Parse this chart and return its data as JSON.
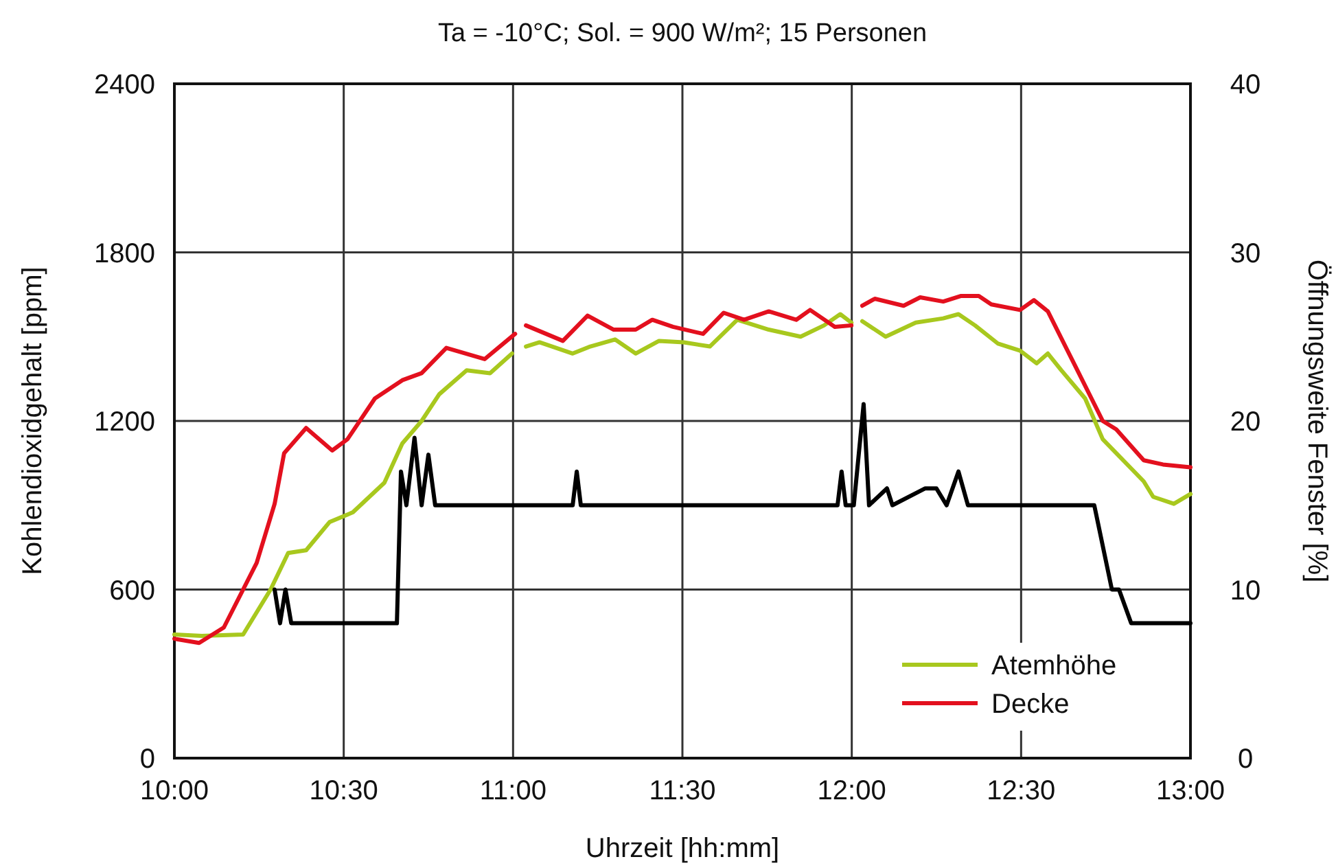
{
  "chart_data": {
    "type": "line",
    "title": "Ta = -10°C; Sol. = 900 W/m²; 15 Personen",
    "xlabel": "Uhrzeit [hh:mm]",
    "ylabel": "Kohlendioxidgehalt [ppm]",
    "y2label": "Öffnungsweite Fenster [%]",
    "xlim": [
      10,
      13
    ],
    "xticks": [
      {
        "value": 10,
        "label": "10:00"
      },
      {
        "value": 10.5,
        "label": "10:30"
      },
      {
        "value": 11,
        "label": "11:00"
      },
      {
        "value": 11.5,
        "label": "11:30"
      },
      {
        "value": 12,
        "label": "12:00"
      },
      {
        "value": 12.5,
        "label": "12:30"
      },
      {
        "value": 13,
        "label": "13:00"
      }
    ],
    "ylim": [
      0,
      2400
    ],
    "yticks": [
      0,
      600,
      1200,
      1800,
      2400
    ],
    "y2lim": [
      0,
      40
    ],
    "y2ticks": [
      0,
      10,
      20,
      30,
      40
    ],
    "grid": true,
    "legend": "bottom right",
    "marker": "none",
    "line_style": "solid",
    "series": [
      {
        "name": "Atemhöhe",
        "color": "#a8c81e",
        "x": [
          10,
          10.081,
          10.203,
          10.284,
          10.336,
          10.389,
          10.458,
          10.527,
          10.62,
          10.673,
          10.73,
          10.782,
          10.863,
          10.932,
          10.997,
          11.02,
          11.038,
          11.078,
          11.176,
          11.228,
          11.301,
          11.362,
          11.431,
          11.504,
          11.581,
          11.662,
          11.755,
          11.849,
          11.918,
          11.966,
          11.999,
          12.01,
          12.031,
          12.1,
          12.189,
          12.27,
          12.315,
          12.364,
          12.432,
          12.497,
          12.546,
          12.579,
          12.619,
          12.689,
          12.741,
          12.862,
          12.89,
          12.951,
          13
        ],
        "values": [
          440,
          435,
          440,
          600,
          730,
          740,
          840,
          875,
          980,
          1120,
          1200,
          1295,
          1380,
          1370,
          1440,
          null,
          1465,
          1480,
          1440,
          1465,
          1490,
          1440,
          1485,
          1480,
          1465,
          1560,
          1525,
          1500,
          1540,
          1580,
          1550,
          null,
          1555,
          1500,
          1550,
          1565,
          1580,
          1540,
          1475,
          1450,
          1405,
          1440,
          1380,
          1280,
          1135,
          985,
          930,
          905,
          940
        ]
      },
      {
        "name": "Decke",
        "color": "#e3101e",
        "x": [
          10,
          10.073,
          10.146,
          10.243,
          10.296,
          10.324,
          10.389,
          10.466,
          10.511,
          10.592,
          10.673,
          10.73,
          10.803,
          10.916,
          11.006,
          11.02,
          11.038,
          11.147,
          11.22,
          11.297,
          11.362,
          11.411,
          11.472,
          11.561,
          11.622,
          11.682,
          11.755,
          11.836,
          11.877,
          11.95,
          11.999,
          12.01,
          12.031,
          12.068,
          12.153,
          12.202,
          12.27,
          12.323,
          12.375,
          12.412,
          12.497,
          12.538,
          12.579,
          12.66,
          12.741,
          12.781,
          12.862,
          12.919,
          13
        ],
        "values": [
          425,
          410,
          465,
          695,
          905,
          1085,
          1175,
          1095,
          1135,
          1280,
          1345,
          1370,
          1460,
          1420,
          1510,
          null,
          1540,
          1485,
          1575,
          1525,
          1525,
          1560,
          1535,
          1510,
          1585,
          1560,
          1590,
          1560,
          1595,
          1535,
          1540,
          null,
          1610,
          1635,
          1610,
          1640,
          1625,
          1645,
          1645,
          1615,
          1595,
          1630,
          1590,
          1395,
          1200,
          1170,
          1060,
          1045,
          1035
        ]
      },
      {
        "color": "#000000",
        "axis": "y2",
        "x": [
          10.296,
          10.312,
          10.328,
          10.345,
          10.657,
          10.669,
          10.685,
          10.709,
          10.73,
          10.75,
          10.77,
          11.176,
          11.188,
          11.2,
          11.958,
          11.97,
          11.982,
          12.006,
          12.035,
          12.051,
          12.104,
          12.12,
          12.217,
          12.25,
          12.28,
          12.315,
          12.343,
          12.716,
          12.768,
          12.789,
          12.825,
          13
        ],
        "values": [
          10,
          8,
          10,
          8,
          8,
          17,
          15,
          19,
          15,
          18,
          15,
          15,
          17,
          15,
          15,
          17,
          15,
          15,
          21,
          15,
          16,
          15,
          16,
          16,
          15,
          17,
          15,
          15,
          10,
          10,
          8,
          8
        ]
      }
    ]
  }
}
